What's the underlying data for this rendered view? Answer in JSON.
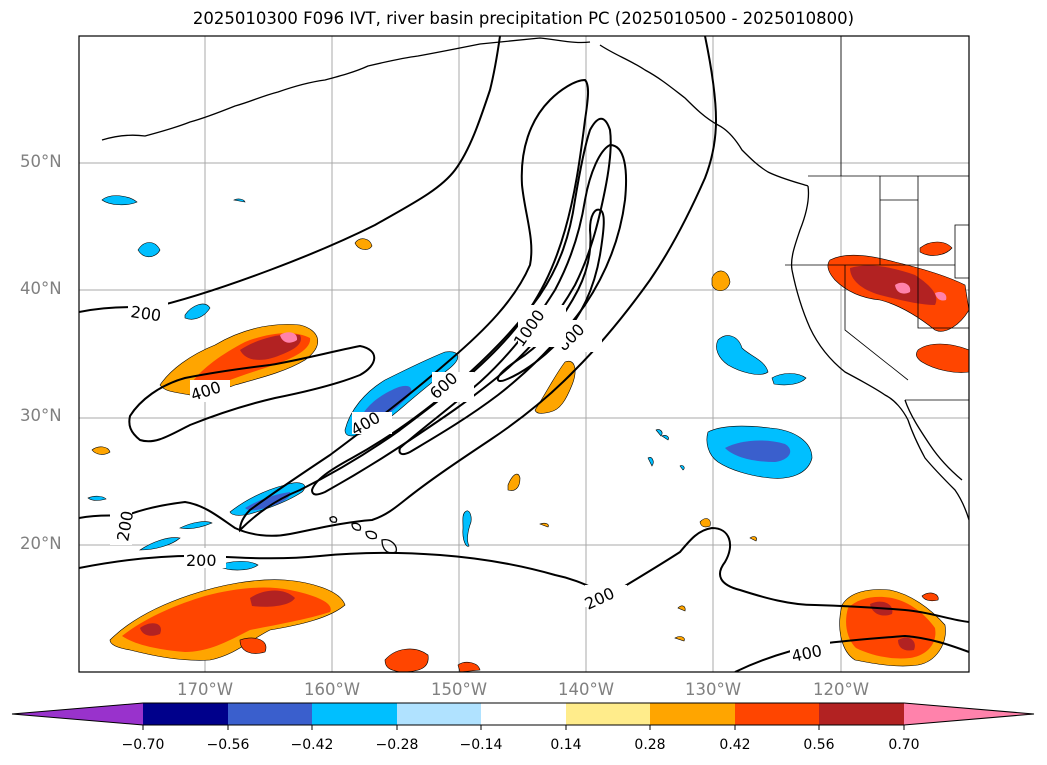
{
  "title": "2025010300 F096 IVT, river basin precipitation PC (2025010500 - 2025010800)",
  "lat_labels": [
    "50°N",
    "40°N",
    "30°N",
    "20°N"
  ],
  "lon_labels": [
    "170°W",
    "160°W",
    "150°W",
    "140°W",
    "130°W",
    "120°W"
  ],
  "contour_labels": [
    "200",
    "200",
    "200",
    "200",
    "400",
    "400",
    "400",
    "600",
    "800",
    "1000"
  ],
  "colorbar": {
    "ticks": [
      "−0.70",
      "−0.56",
      "−0.42",
      "−0.28",
      "−0.14",
      "0.14",
      "0.28",
      "0.42",
      "0.56",
      "0.70"
    ],
    "colors": [
      "#9932cc",
      "#00008b",
      "#3a5fcd",
      "#00bfff",
      "#b0e2ff",
      "#ffffff",
      "#ffec8b",
      "#ffa500",
      "#ff4500",
      "#b22222",
      "#ff82ab"
    ]
  },
  "map": {
    "lon_range": [
      180,
      110
    ],
    "lat_range": [
      10,
      60
    ],
    "gridlines": true,
    "ivt_contour_levels": [
      200,
      400,
      600,
      800,
      1000
    ],
    "precip_pc_levels": [
      -0.7,
      -0.56,
      -0.42,
      -0.28,
      -0.14,
      0.14,
      0.28,
      0.42,
      0.56,
      0.7
    ]
  }
}
